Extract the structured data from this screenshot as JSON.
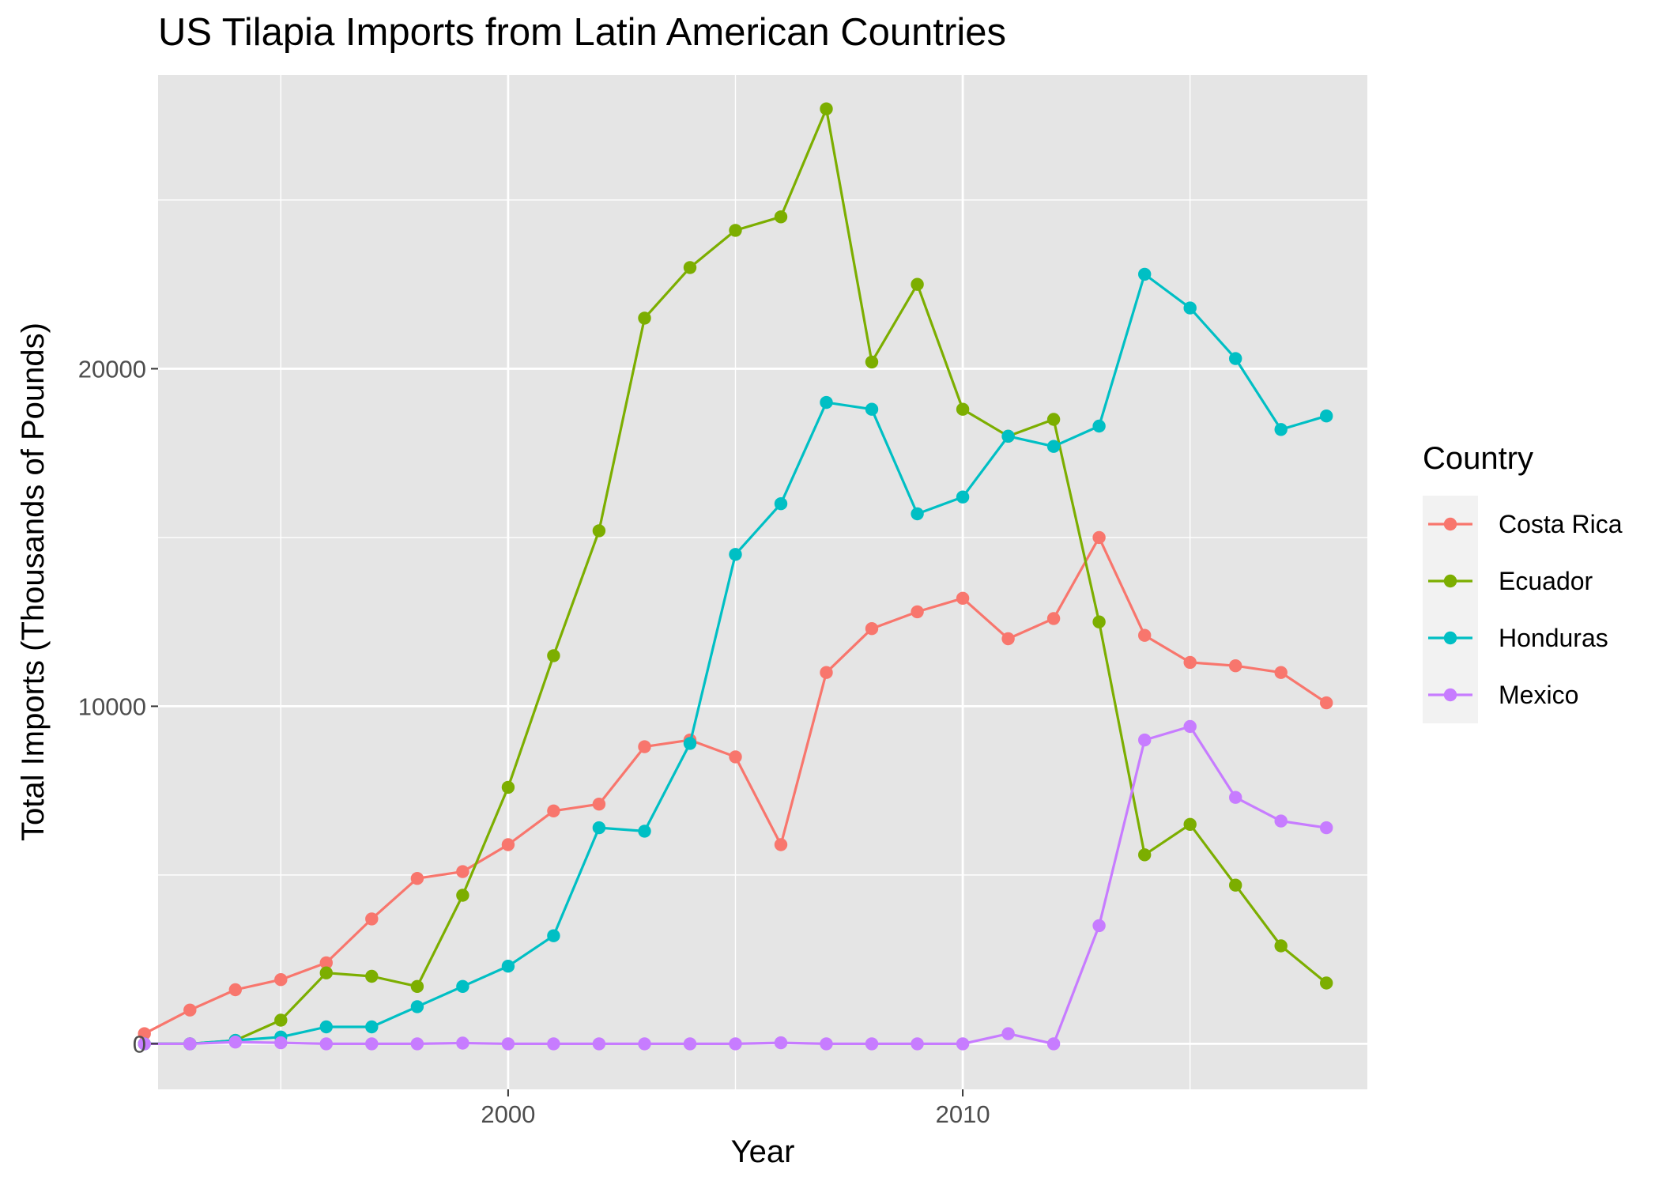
{
  "chart_data": {
    "type": "line",
    "title": "US Tilapia Imports from Latin American Countries",
    "xlabel": "Year",
    "ylabel": "Total Imports (Thousands of Pounds)",
    "xlim": [
      1992.3,
      2018.9
    ],
    "ylim": [
      -1350,
      28700
    ],
    "xticks": [
      2000,
      2010
    ],
    "xtick_labels": [
      "2000",
      "2010"
    ],
    "yticks": [
      0,
      10000,
      20000
    ],
    "ytick_labels": [
      "0",
      "10000",
      "20000"
    ],
    "grid": true,
    "legend_title": "Country",
    "legend_position": "right",
    "x": [
      1992,
      1993,
      1994,
      1995,
      1996,
      1997,
      1998,
      1999,
      2000,
      2001,
      2002,
      2003,
      2004,
      2005,
      2006,
      2007,
      2008,
      2009,
      2010,
      2011,
      2012,
      2013,
      2014,
      2015,
      2016,
      2017,
      2018
    ],
    "series": [
      {
        "name": "Costa Rica",
        "color": "#F8766D",
        "values": [
          300,
          1000,
          1600,
          1900,
          2400,
          3700,
          4900,
          5100,
          5900,
          6900,
          7100,
          8800,
          9000,
          8500,
          5900,
          11000,
          12300,
          12800,
          13200,
          12000,
          12600,
          15000,
          12100,
          11300,
          11200,
          11000,
          10100
        ]
      },
      {
        "name": "Ecuador",
        "color": "#7CAE00",
        "values": [
          0,
          0,
          100,
          700,
          2100,
          2000,
          1700,
          4400,
          7600,
          11500,
          15200,
          21500,
          23000,
          24100,
          24500,
          27700,
          20200,
          22500,
          18800,
          18000,
          18500,
          12500,
          5600,
          6500,
          4700,
          2900,
          1800
        ]
      },
      {
        "name": "Honduras",
        "color": "#00BFC4",
        "values": [
          0,
          0,
          100,
          200,
          500,
          500,
          1100,
          1700,
          2300,
          3200,
          6400,
          6300,
          8900,
          14500,
          16000,
          19000,
          18800,
          15700,
          16200,
          18000,
          17700,
          18300,
          22800,
          21800,
          20300,
          18200,
          18600
        ]
      },
      {
        "name": "Mexico",
        "color": "#C77CFF",
        "values": [
          0,
          0,
          50,
          30,
          0,
          0,
          0,
          20,
          0,
          0,
          0,
          0,
          0,
          0,
          30,
          0,
          0,
          0,
          0,
          300,
          0,
          3500,
          9000,
          9400,
          7300,
          6600,
          6400
        ]
      }
    ]
  },
  "colors": {
    "panel_background": "#E5E5E5",
    "grid_line": "#FFFFFF",
    "legend_key_background": "#F2F2F2",
    "tick_text": "#4D4D4D",
    "tick_mark": "#333333"
  }
}
